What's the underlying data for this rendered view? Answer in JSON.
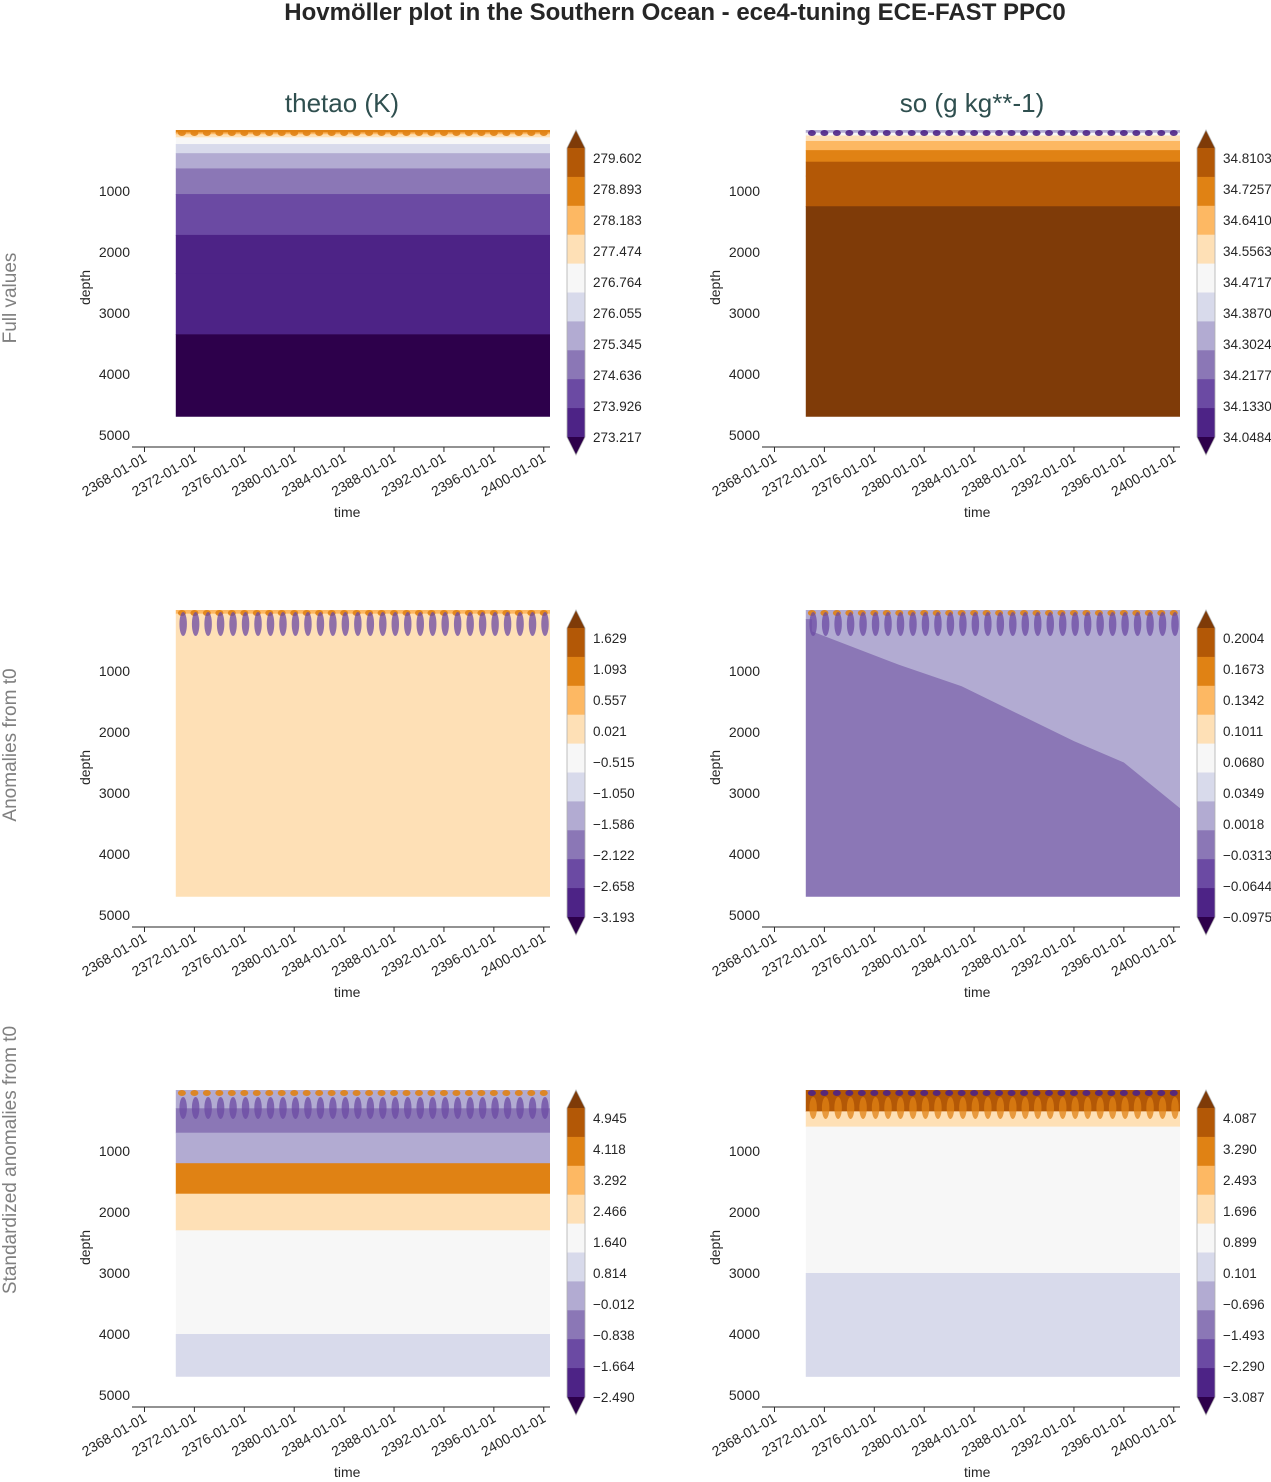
{
  "title": "Hovmöller plot in the Southern Ocean - ece4-tuning ECE-FAST PPC0",
  "columns": [
    "thetao (K)",
    "so (g kg**-1)"
  ],
  "rows": [
    "Full values",
    "Anomalies from t0",
    "Standardized anomalies from t0"
  ],
  "colors": {
    "cmap": [
      "#2d004b",
      "#4d2386",
      "#6b4aa3",
      "#8b77b6",
      "#b2abd2",
      "#d8daeb",
      "#f7f7f7",
      "#fee0b6",
      "#fdb863",
      "#e08214",
      "#b35806",
      "#7f3b08"
    ],
    "text": "#262626",
    "title": "#2f4f4f",
    "row_label": "#808080"
  },
  "chart_data": [
    {
      "type": "heatmap",
      "id": "p00",
      "title": "thetao (K)",
      "row_label": "Full values",
      "xlabel": "time",
      "ylabel": "depth",
      "xlim": [
        2367,
        2400.5
      ],
      "data_x": [
        2370.5,
        2400.5
      ],
      "ylim": [
        5000,
        0
      ],
      "data_depth": [
        0,
        4700
      ],
      "xticks": [
        "2368-01-01",
        "2372-01-01",
        "2376-01-01",
        "2380-01-01",
        "2384-01-01",
        "2388-01-01",
        "2392-01-01",
        "2396-01-01",
        "2400-01-01"
      ],
      "yticks": [
        1000,
        2000,
        3000,
        4000,
        5000
      ],
      "levels": [
        273.217,
        273.926,
        274.636,
        275.345,
        276.055,
        276.764,
        277.474,
        278.183,
        278.893,
        279.602
      ],
      "cb_ticks": [
        "279.602",
        "278.893",
        "278.183",
        "277.474",
        "276.764",
        "276.055",
        "275.345",
        "274.636",
        "273.926",
        "273.217"
      ],
      "layers": [
        [
          0,
          9
        ],
        [
          40,
          8
        ],
        [
          70,
          7
        ],
        [
          120,
          6
        ],
        [
          230,
          5
        ],
        [
          380,
          4
        ],
        [
          630,
          3
        ],
        [
          1050,
          2
        ],
        [
          1720,
          1
        ],
        [
          2350,
          1
        ],
        [
          3350,
          0
        ]
      ]
    },
    {
      "type": "heatmap",
      "id": "p01",
      "title": "so (g kg**-1)",
      "row_label": "Full values",
      "xlabel": "time",
      "ylabel": "depth",
      "xlim": [
        2367,
        2400.5
      ],
      "data_x": [
        2370.5,
        2400.5
      ],
      "ylim": [
        5000,
        0
      ],
      "data_depth": [
        0,
        4700
      ],
      "xticks": [
        "2368-01-01",
        "2372-01-01",
        "2376-01-01",
        "2380-01-01",
        "2384-01-01",
        "2388-01-01",
        "2392-01-01",
        "2396-01-01",
        "2400-01-01"
      ],
      "yticks": [
        1000,
        2000,
        3000,
        4000,
        5000
      ],
      "levels": [
        34.0484,
        34.133,
        34.2177,
        34.3024,
        34.387,
        34.4717,
        34.5563,
        34.641,
        34.7257,
        34.8103
      ],
      "cb_ticks": [
        "34.8103",
        "34.7257",
        "34.6410",
        "34.5563",
        "34.4717",
        "34.3870",
        "34.3024",
        "34.2177",
        "34.1330",
        "34.0484"
      ],
      "layers": [
        [
          0,
          4
        ],
        [
          45,
          6
        ],
        [
          90,
          7
        ],
        [
          180,
          8
        ],
        [
          330,
          9
        ],
        [
          520,
          10
        ],
        [
          750,
          10
        ],
        [
          1250,
          11
        ]
      ]
    },
    {
      "type": "heatmap",
      "id": "p10",
      "title": "",
      "row_label": "Anomalies from t0",
      "xlabel": "time",
      "ylabel": "depth",
      "xlim": [
        2367,
        2400.5
      ],
      "data_x": [
        2370.5,
        2400.5
      ],
      "ylim": [
        5000,
        0
      ],
      "data_depth": [
        0,
        4700
      ],
      "xticks": [
        "2368-01-01",
        "2372-01-01",
        "2376-01-01",
        "2380-01-01",
        "2384-01-01",
        "2388-01-01",
        "2392-01-01",
        "2396-01-01",
        "2400-01-01"
      ],
      "yticks": [
        1000,
        2000,
        3000,
        4000,
        5000
      ],
      "levels": [
        -3.193,
        -2.658,
        -2.122,
        -1.586,
        -1.05,
        -0.515,
        0.021,
        0.557,
        1.093,
        1.629
      ],
      "cb_ticks": [
        "1.629",
        "1.093",
        "0.557",
        "0.021",
        "−0.515",
        "−1.050",
        "−1.586",
        "−2.122",
        "−2.658",
        "−3.193"
      ],
      "layers": [
        [
          0,
          8
        ],
        [
          60,
          7
        ]
      ]
    },
    {
      "type": "heatmap",
      "id": "p11",
      "title": "",
      "row_label": "Anomalies from t0",
      "xlabel": "time",
      "ylabel": "depth",
      "xlim": [
        2367,
        2400.5
      ],
      "data_x": [
        2370.5,
        2400.5
      ],
      "ylim": [
        5000,
        0
      ],
      "data_depth": [
        0,
        4700
      ],
      "xticks": [
        "2368-01-01",
        "2372-01-01",
        "2376-01-01",
        "2380-01-01",
        "2384-01-01",
        "2388-01-01",
        "2392-01-01",
        "2396-01-01",
        "2400-01-01"
      ],
      "yticks": [
        1000,
        2000,
        3000,
        4000,
        5000
      ],
      "levels": [
        -0.0975,
        -0.0644,
        -0.0313,
        0.0018,
        0.0349,
        0.068,
        0.1011,
        0.1342,
        0.1673,
        0.2004
      ],
      "cb_ticks": [
        "0.2004",
        "0.1673",
        "0.1342",
        "0.1011",
        "0.0680",
        "0.0349",
        "0.0018",
        "−0.0313",
        "−0.0644",
        "−0.0975"
      ],
      "layers": [
        [
          0,
          4
        ],
        [
          150,
          3
        ]
      ],
      "front": [
        [
          2371,
          350
        ],
        [
          2378,
          900
        ],
        [
          2383,
          1250
        ],
        [
          2388,
          1750
        ],
        [
          2392,
          2150
        ],
        [
          2396,
          2500
        ],
        [
          2400.5,
          3250
        ]
      ]
    },
    {
      "type": "heatmap",
      "id": "p20",
      "title": "",
      "row_label": "Standardized anomalies from t0",
      "xlabel": "time",
      "ylabel": "depth",
      "xlim": [
        2367,
        2400.5
      ],
      "data_x": [
        2370.5,
        2400.5
      ],
      "ylim": [
        5000,
        0
      ],
      "data_depth": [
        0,
        4700
      ],
      "xticks": [
        "2368-01-01",
        "2372-01-01",
        "2376-01-01",
        "2380-01-01",
        "2384-01-01",
        "2388-01-01",
        "2392-01-01",
        "2396-01-01",
        "2400-01-01"
      ],
      "yticks": [
        1000,
        2000,
        3000,
        4000,
        5000
      ],
      "levels": [
        -2.49,
        -1.664,
        -0.838,
        -0.012,
        0.814,
        1.64,
        2.466,
        3.292,
        4.118,
        4.945
      ],
      "cb_ticks": [
        "4.945",
        "4.118",
        "3.292",
        "2.466",
        "1.640",
        "0.814",
        "−0.012",
        "−0.838",
        "−1.664",
        "−2.490"
      ],
      "layers": [
        [
          0,
          4
        ],
        [
          300,
          3
        ],
        [
          700,
          4
        ],
        [
          1200,
          9
        ],
        [
          1700,
          7
        ],
        [
          2300,
          6
        ],
        [
          3000,
          6
        ],
        [
          4000,
          5
        ]
      ]
    },
    {
      "type": "heatmap",
      "id": "p21",
      "title": "",
      "row_label": "Standardized anomalies from t0",
      "xlabel": "time",
      "ylabel": "depth",
      "xlim": [
        2367,
        2400.5
      ],
      "data_x": [
        2370.5,
        2400.5
      ],
      "ylim": [
        5000,
        0
      ],
      "data_depth": [
        0,
        4700
      ],
      "xticks": [
        "2368-01-01",
        "2372-01-01",
        "2376-01-01",
        "2380-01-01",
        "2384-01-01",
        "2388-01-01",
        "2392-01-01",
        "2396-01-01",
        "2400-01-01"
      ],
      "yticks": [
        1000,
        2000,
        3000,
        4000,
        5000
      ],
      "levels": [
        -3.087,
        -2.29,
        -1.493,
        -0.696,
        0.101,
        0.899,
        1.696,
        2.493,
        3.29,
        4.087
      ],
      "cb_ticks": [
        "4.087",
        "3.290",
        "2.493",
        "1.696",
        "0.899",
        "0.101",
        "−0.696",
        "−1.493",
        "−2.290",
        "−3.087"
      ],
      "layers": [
        [
          0,
          10
        ],
        [
          350,
          7
        ],
        [
          600,
          6
        ],
        [
          1500,
          6
        ],
        [
          3000,
          5
        ],
        [
          4700,
          5
        ]
      ]
    }
  ]
}
